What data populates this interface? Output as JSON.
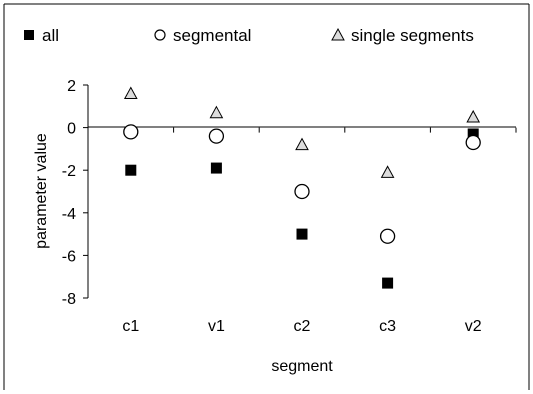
{
  "chart_data": {
    "type": "scatter",
    "categories": [
      "c1",
      "v1",
      "c2",
      "c3",
      "v2"
    ],
    "xlabel": "segment",
    "ylabel": "parameter value",
    "ylim": [
      -8,
      2
    ],
    "yticks": [
      2,
      0,
      -2,
      -4,
      -6,
      -8
    ],
    "grid": false,
    "legend_position": "top",
    "series": [
      {
        "name": "all",
        "marker": "filled-square",
        "color": "#000000",
        "values": [
          -2.0,
          -1.9,
          -5.0,
          -7.3,
          -0.3
        ]
      },
      {
        "name": "segmental",
        "marker": "open-circle",
        "color": "#000000",
        "values": [
          -0.2,
          -0.4,
          -3.0,
          -5.1,
          -0.7
        ]
      },
      {
        "name": "single segments",
        "marker": "open-triangle",
        "color": "#7f7f7f",
        "values": [
          1.6,
          0.7,
          -0.8,
          -2.1,
          0.5
        ]
      }
    ]
  }
}
